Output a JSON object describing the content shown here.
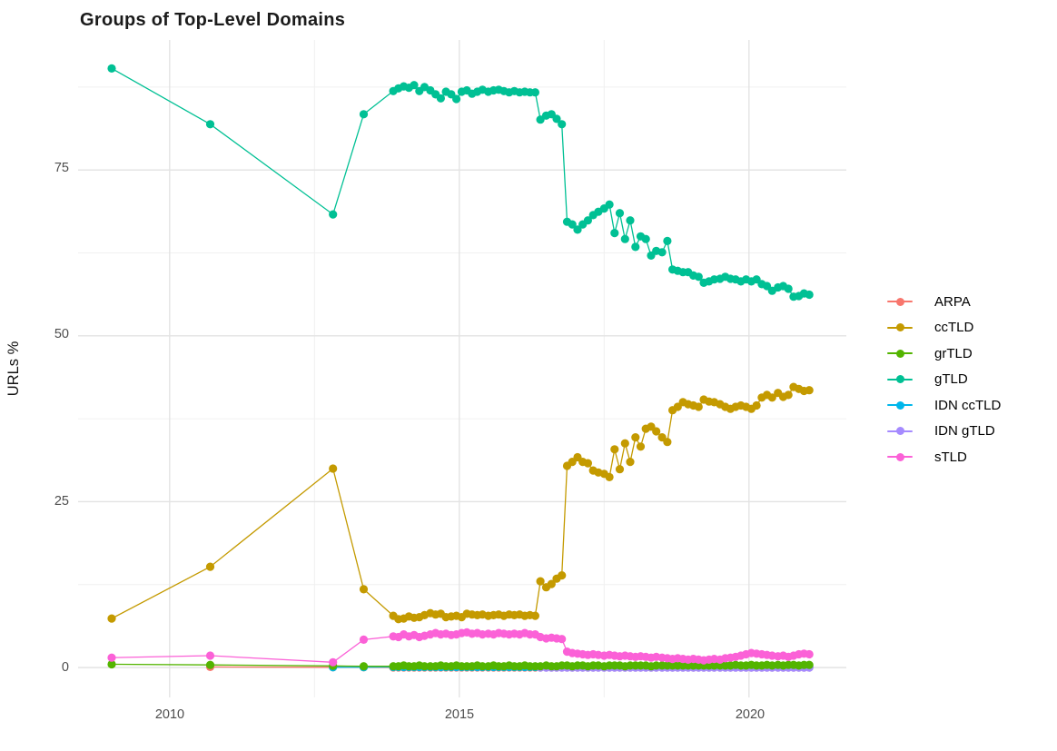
{
  "page": {
    "background": "#ffffff"
  },
  "chart_data": {
    "type": "line",
    "title": "Groups of Top-Level Domains",
    "xlabel": "",
    "ylabel": "URLs %",
    "legend_position": "right",
    "grid_on": true,
    "xlim": [
      2008.42,
      2021.68
    ],
    "ylim": [
      -4.5,
      94.6
    ],
    "x_ticks": {
      "values": [
        2010,
        2015,
        2020
      ],
      "labels": [
        "2010",
        "2015",
        "2020"
      ]
    },
    "y_ticks": {
      "values": [
        0,
        25,
        50,
        75
      ],
      "labels": [
        "0",
        "25",
        "50",
        "75"
      ]
    },
    "grid": {
      "x_minor": [
        2012.5,
        2017.5
      ],
      "y_minor": [
        12.5,
        37.5,
        62.5,
        87.5
      ]
    },
    "draw_order": [
      0,
      4,
      5,
      2,
      1,
      3,
      6
    ],
    "dense_x": [
      2013.86,
      2013.95,
      2014.04,
      2014.13,
      2014.22,
      2014.31,
      2014.4,
      2014.5,
      2014.59,
      2014.68,
      2014.77,
      2014.86,
      2014.95,
      2015.04,
      2015.13,
      2015.22,
      2015.31,
      2015.4,
      2015.5,
      2015.59,
      2015.68,
      2015.77,
      2015.86,
      2015.95,
      2016.04,
      2016.13,
      2016.22,
      2016.31,
      2016.4,
      2016.5,
      2016.59,
      2016.68,
      2016.77,
      2016.86,
      2016.95,
      2017.04,
      2017.13,
      2017.22,
      2017.31,
      2017.4,
      2017.5,
      2017.59,
      2017.68,
      2017.77,
      2017.86,
      2017.95,
      2018.04,
      2018.13,
      2018.22,
      2018.31,
      2018.4,
      2018.5,
      2018.59,
      2018.68,
      2018.77,
      2018.86,
      2018.95,
      2019.04,
      2019.13,
      2019.22,
      2019.31,
      2019.4,
      2019.5,
      2019.59,
      2019.68,
      2019.77,
      2019.86,
      2019.95,
      2020.04,
      2020.13,
      2020.22,
      2020.31,
      2020.4,
      2020.5,
      2020.59,
      2020.68,
      2020.77,
      2020.86,
      2020.95,
      2021.04
    ],
    "series": [
      {
        "name": "ARPA",
        "color": "#F8766D",
        "early": [
          [
            2010.7,
            0.1
          ],
          [
            2012.82,
            0.05
          ],
          [
            2013.35,
            0.04
          ]
        ],
        "dense_y_const": 0.02
      },
      {
        "name": "ccTLD",
        "color": "#C49A00",
        "early": [
          [
            2009.0,
            7.4
          ],
          [
            2010.7,
            15.2
          ],
          [
            2012.82,
            30.0
          ],
          [
            2013.35,
            11.8
          ]
        ],
        "dense_y": [
          7.8,
          7.3,
          7.4,
          7.7,
          7.5,
          7.6,
          7.9,
          8.2,
          8.0,
          8.1,
          7.6,
          7.7,
          7.8,
          7.6,
          8.1,
          8.0,
          7.9,
          8.0,
          7.8,
          7.9,
          8.0,
          7.8,
          8.0,
          7.9,
          8.0,
          7.8,
          7.9,
          7.8,
          13.0,
          12.1,
          12.6,
          13.4,
          13.9,
          30.4,
          31.0,
          31.7,
          31.0,
          30.8,
          29.7,
          29.4,
          29.2,
          28.7,
          32.9,
          29.9,
          33.8,
          31.0,
          34.7,
          33.3,
          36.0,
          36.3,
          35.6,
          34.7,
          34.0,
          38.8,
          39.3,
          40.0,
          39.7,
          39.5,
          39.3,
          40.4,
          40.1,
          40.0,
          39.7,
          39.3,
          39.0,
          39.3,
          39.5,
          39.3,
          39.0,
          39.5,
          40.7,
          41.1,
          40.7,
          41.4,
          40.8,
          41.1,
          42.3,
          42.0,
          41.7,
          41.8
        ]
      },
      {
        "name": "grTLD",
        "color": "#53B400",
        "early": [
          [
            2009.0,
            0.5
          ],
          [
            2010.7,
            0.4
          ],
          [
            2012.82,
            0.25
          ],
          [
            2013.35,
            0.2
          ]
        ],
        "dense_y": [
          0.2,
          0.2,
          0.3,
          0.2,
          0.2,
          0.3,
          0.2,
          0.2,
          0.2,
          0.3,
          0.2,
          0.2,
          0.3,
          0.2,
          0.2,
          0.2,
          0.3,
          0.2,
          0.2,
          0.3,
          0.2,
          0.2,
          0.3,
          0.2,
          0.2,
          0.3,
          0.2,
          0.2,
          0.2,
          0.3,
          0.2,
          0.2,
          0.3,
          0.3,
          0.2,
          0.3,
          0.3,
          0.2,
          0.3,
          0.3,
          0.2,
          0.3,
          0.3,
          0.3,
          0.2,
          0.3,
          0.3,
          0.3,
          0.3,
          0.2,
          0.3,
          0.3,
          0.3,
          0.3,
          0.3,
          0.3,
          0.3,
          0.3,
          0.3,
          0.3,
          0.3,
          0.3,
          0.3,
          0.3,
          0.3,
          0.4,
          0.3,
          0.3,
          0.4,
          0.3,
          0.3,
          0.4,
          0.3,
          0.4,
          0.3,
          0.4,
          0.4,
          0.3,
          0.4,
          0.4
        ]
      },
      {
        "name": "gTLD",
        "color": "#00C094",
        "early": [
          [
            2009.0,
            90.3
          ],
          [
            2010.7,
            81.9
          ],
          [
            2012.82,
            68.3
          ],
          [
            2013.35,
            83.4
          ]
        ],
        "dense_y": [
          86.9,
          87.3,
          87.6,
          87.4,
          87.8,
          86.9,
          87.5,
          87.0,
          86.4,
          85.8,
          86.8,
          86.4,
          85.7,
          86.8,
          87.0,
          86.5,
          86.8,
          87.1,
          86.8,
          87.0,
          87.1,
          86.9,
          86.7,
          86.9,
          86.7,
          86.8,
          86.7,
          86.7,
          82.6,
          83.2,
          83.4,
          82.7,
          81.9,
          67.2,
          66.8,
          66.0,
          66.8,
          67.4,
          68.2,
          68.7,
          69.2,
          69.8,
          65.5,
          68.5,
          64.6,
          67.4,
          63.4,
          65.0,
          64.6,
          62.1,
          62.8,
          62.6,
          64.3,
          60.0,
          59.8,
          59.6,
          59.6,
          59.1,
          58.9,
          58.0,
          58.2,
          58.5,
          58.6,
          58.9,
          58.6,
          58.5,
          58.2,
          58.5,
          58.2,
          58.5,
          57.8,
          57.5,
          56.8,
          57.3,
          57.5,
          57.1,
          55.9,
          56.0,
          56.4,
          56.2
        ]
      },
      {
        "name": "IDN ccTLD",
        "color": "#00B6EB",
        "early": [
          [
            2012.82,
            0.05
          ],
          [
            2013.35,
            0.06
          ]
        ],
        "dense_y_const": 0.08
      },
      {
        "name": "IDN gTLD",
        "color": "#A58AFF",
        "dense_from": 2016.4,
        "dense_y_const": 0.0
      },
      {
        "name": "sTLD",
        "color": "#FB61D7",
        "early": [
          [
            2009.0,
            1.5
          ],
          [
            2010.7,
            1.8
          ],
          [
            2012.82,
            0.8
          ],
          [
            2013.35,
            4.2
          ]
        ],
        "dense_y": [
          4.7,
          4.6,
          5.0,
          4.7,
          4.9,
          4.6,
          4.8,
          5.0,
          5.2,
          5.0,
          5.1,
          4.9,
          5.0,
          5.2,
          5.3,
          5.1,
          5.2,
          5.0,
          5.1,
          5.0,
          5.2,
          5.1,
          5.0,
          5.1,
          5.0,
          5.2,
          5.0,
          5.0,
          4.6,
          4.4,
          4.5,
          4.4,
          4.3,
          2.4,
          2.2,
          2.1,
          2.0,
          1.9,
          2.0,
          1.9,
          1.8,
          1.9,
          1.8,
          1.7,
          1.8,
          1.7,
          1.6,
          1.7,
          1.6,
          1.5,
          1.6,
          1.5,
          1.4,
          1.3,
          1.4,
          1.3,
          1.2,
          1.3,
          1.2,
          1.1,
          1.2,
          1.3,
          1.2,
          1.4,
          1.5,
          1.6,
          1.8,
          2.0,
          2.2,
          2.1,
          2.0,
          1.9,
          1.8,
          1.7,
          1.8,
          1.6,
          1.8,
          2.0,
          2.1,
          2.0
        ]
      }
    ]
  }
}
